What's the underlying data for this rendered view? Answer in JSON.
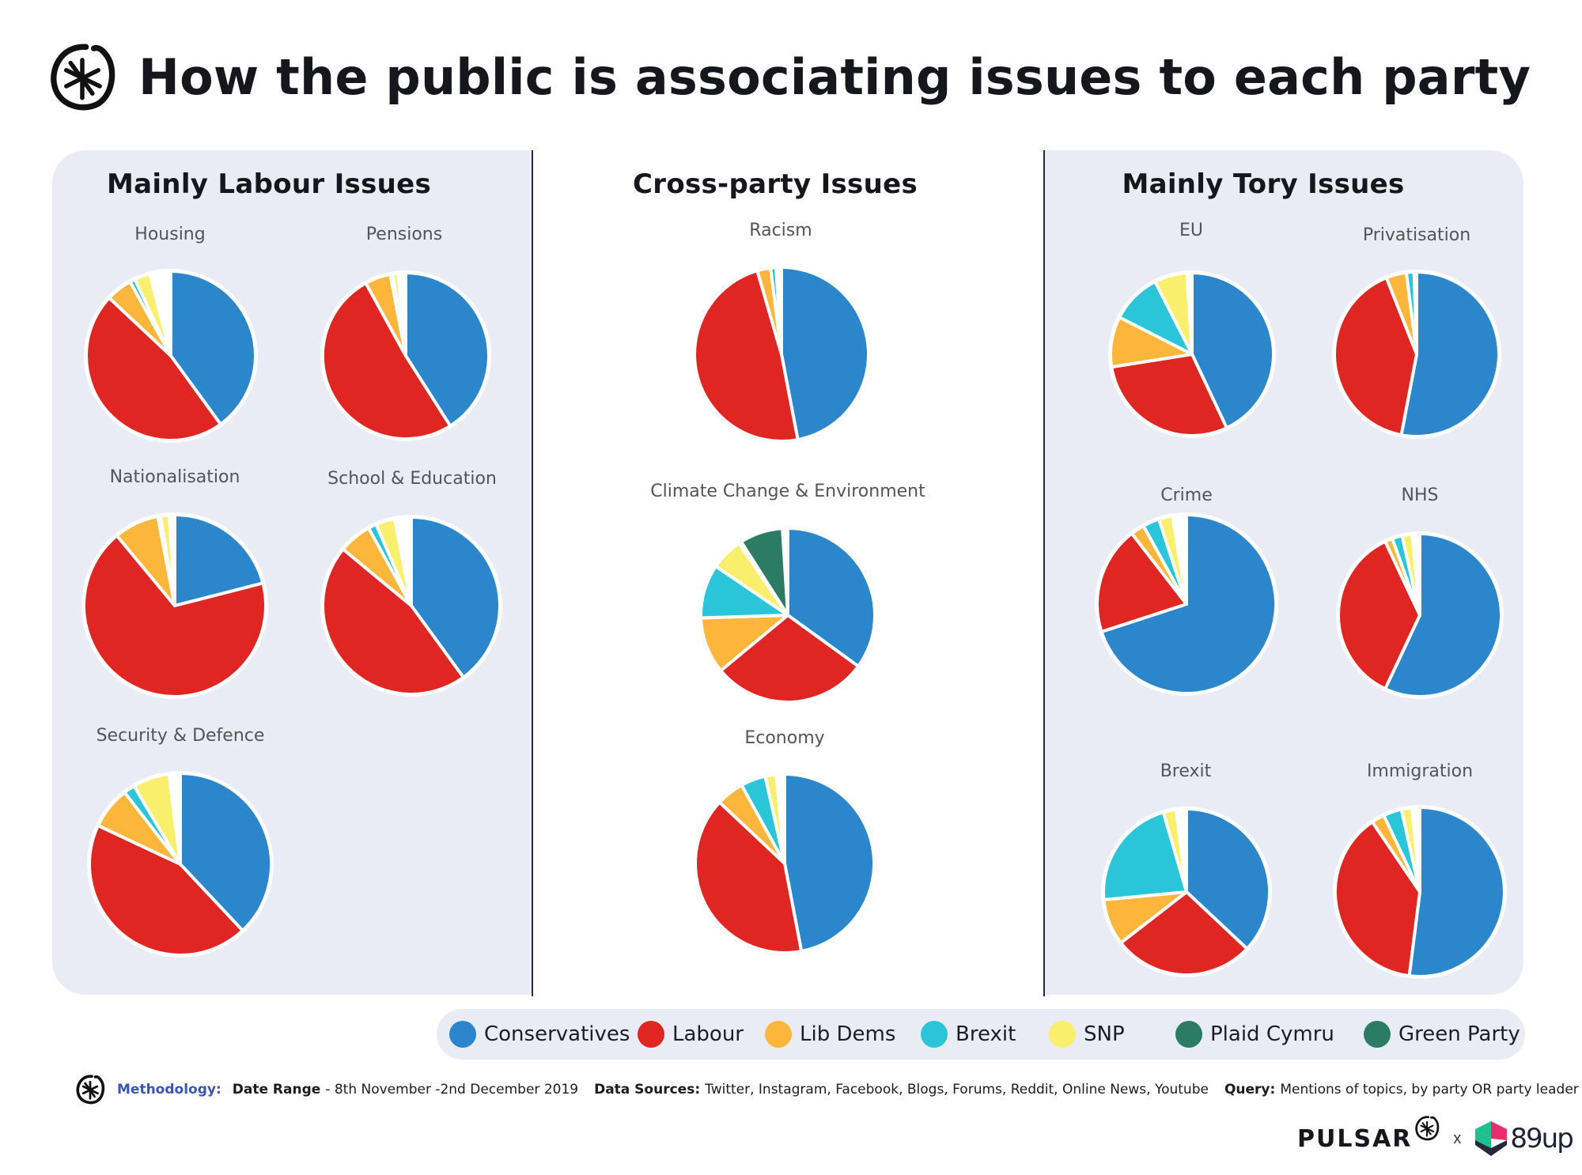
{
  "header": {
    "title": "How the public is associating issues to each party",
    "logo_icon": "pulsar-asterisk-icon"
  },
  "sections": {
    "labour": {
      "title": "Mainly Labour Issues"
    },
    "cross": {
      "title": "Cross-party Issues"
    },
    "tory": {
      "title": "Mainly Tory Issues"
    }
  },
  "legend": {
    "items": [
      {
        "label": "Conservatives",
        "color": "#2b86cc"
      },
      {
        "label": "Labour",
        "color": "#df2622"
      },
      {
        "label": "Lib Dems",
        "color": "#fbb63b"
      },
      {
        "label": "Brexit",
        "color": "#2ac5d8"
      },
      {
        "label": "SNP",
        "color": "#f9ef6c"
      },
      {
        "label": "Plaid Cymru",
        "color": "#2b7c62"
      },
      {
        "label": "Green Party",
        "color": "#2b7c62"
      }
    ]
  },
  "footer": {
    "methodology_label": "Methodology:",
    "date_range_label": "Date Range",
    "date_range_value": "- 8th November -2nd December 2019",
    "data_sources_label": "Data Sources:",
    "data_sources_value": "Twitter, Instagram, Facebook, Blogs, Forums, Reddit, Online News, Youtube",
    "query_label": "Query:",
    "query_value": "Mentions of topics, by party OR party leader"
  },
  "brand": {
    "pulsar": "PULSAR",
    "separator": "x",
    "partner": "89up"
  },
  "chart_data": {
    "type": "pie",
    "title": "How the public is associating issues to each party",
    "unit": "percent share of mentions (estimated)",
    "series_order": [
      "Conservatives",
      "Labour",
      "Lib Dems",
      "Brexit",
      "SNP",
      "Plaid Cymru",
      "Green Party"
    ],
    "series_colors": [
      "#2b86cc",
      "#df2622",
      "#fbb63b",
      "#2ac5d8",
      "#f9ef6c",
      "#2b7c62",
      "#2b7c62"
    ],
    "groups": [
      {
        "name": "Mainly Labour Issues",
        "pies": [
          {
            "title": "Housing",
            "values": [
              40,
              47,
              5,
              1,
              3,
              0.5,
              0.5
            ]
          },
          {
            "title": "Pensions",
            "values": [
              41,
              51,
              5,
              0.5,
              1,
              0,
              0
            ]
          },
          {
            "title": "Nationalisation",
            "values": [
              21,
              68,
              8,
              0.5,
              1.5,
              0,
              0
            ]
          },
          {
            "title": "School & Education",
            "values": [
              40,
              46,
              6,
              1.5,
              3.5,
              0,
              0.5
            ]
          },
          {
            "title": "Security & Defence",
            "values": [
              38,
              44,
              7.5,
              2,
              6.5,
              0,
              0.5
            ]
          }
        ]
      },
      {
        "name": "Cross-party Issues",
        "pies": [
          {
            "title": "Racism",
            "values": [
              47,
              48.5,
              2.5,
              1,
              0.5,
              0,
              0
            ]
          },
          {
            "title": "Climate Change & Environment",
            "values": [
              35,
              29,
              10.5,
              10,
              6,
              0.5,
              8
            ]
          },
          {
            "title": "Economy",
            "values": [
              47,
              40,
              5,
              4.5,
              2,
              0,
              0.5
            ]
          }
        ]
      },
      {
        "name": "Mainly Tory Issues",
        "pies": [
          {
            "title": "EU",
            "values": [
              43,
              29.5,
              10,
              10,
              6.5,
              0,
              0.5
            ]
          },
          {
            "title": "Privatisation",
            "values": [
              53,
              41,
              4,
              1.5,
              0.5,
              0,
              0
            ]
          },
          {
            "title": "Crime",
            "values": [
              70,
              19.5,
              2.5,
              3,
              2.5,
              0,
              0
            ]
          },
          {
            "title": "NHS",
            "values": [
              57,
              36,
              1.5,
              2,
              2,
              0,
              0
            ]
          },
          {
            "title": "Brexit",
            "values": [
              37,
              27.5,
              9,
              22,
              2.5,
              0.5,
              0
            ]
          },
          {
            "title": "Immigration",
            "values": [
              52,
              38.5,
              2.5,
              3.5,
              2,
              0,
              0
            ]
          }
        ]
      }
    ],
    "legend_position": "bottom"
  }
}
